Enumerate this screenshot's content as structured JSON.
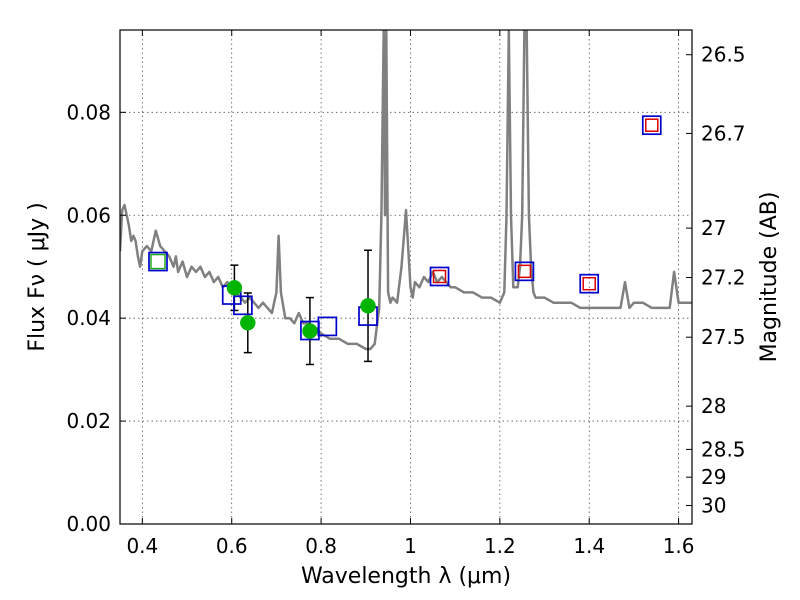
{
  "chart_data": {
    "type": "scatter",
    "xlabel": "Wavelength  λ (μm)",
    "ylabel": "Flux  Fν  ( μJy )",
    "ylabel_right": "Magnitude (AB)",
    "xlim": [
      0.35,
      1.63
    ],
    "ylim": [
      0.0,
      0.096
    ],
    "grid": true,
    "x_ticks": [
      0.4,
      0.6,
      0.8,
      1.0,
      1.2,
      1.4,
      1.6
    ],
    "x_tick_labels": [
      "0.4",
      "0.6",
      "0.8",
      "1",
      "1.2",
      "1.4",
      "1.6"
    ],
    "y_ticks": [
      0.0,
      0.02,
      0.04,
      0.06,
      0.08
    ],
    "y_tick_labels": [
      "0.00",
      "0.02",
      "0.04",
      "0.06",
      "0.08"
    ],
    "mag_ticks": [
      {
        "flux": 0.0912,
        "label": "26.5"
      },
      {
        "flux": 0.0759,
        "label": "26.7"
      },
      {
        "flux": 0.0575,
        "label": "27"
      },
      {
        "flux": 0.0479,
        "label": "27.2"
      },
      {
        "flux": 0.0363,
        "label": "27.5"
      },
      {
        "flux": 0.0229,
        "label": "28"
      },
      {
        "flux": 0.0145,
        "label": "28.5"
      },
      {
        "flux": 0.0091,
        "label": "29"
      },
      {
        "flux": 0.0036,
        "label": "30"
      }
    ],
    "colors": {
      "model": "#808080",
      "observed": "#00b400",
      "model_band": "#0000cc",
      "green_square": "#22aa22",
      "red_square": "#dd0000",
      "errorbar": "#000000",
      "grid": "#555555"
    },
    "model_spectrum": {
      "name": "model SED",
      "x": [
        0.35,
        0.355,
        0.36,
        0.365,
        0.37,
        0.375,
        0.38,
        0.385,
        0.39,
        0.395,
        0.4,
        0.41,
        0.42,
        0.425,
        0.43,
        0.44,
        0.45,
        0.46,
        0.47,
        0.475,
        0.48,
        0.49,
        0.5,
        0.51,
        0.52,
        0.53,
        0.54,
        0.55,
        0.56,
        0.57,
        0.58,
        0.59,
        0.6,
        0.61,
        0.62,
        0.63,
        0.64,
        0.65,
        0.66,
        0.67,
        0.68,
        0.69,
        0.7,
        0.705,
        0.71,
        0.72,
        0.73,
        0.74,
        0.75,
        0.76,
        0.77,
        0.78,
        0.79,
        0.8,
        0.82,
        0.84,
        0.86,
        0.88,
        0.9,
        0.91,
        0.92,
        0.93,
        0.935,
        0.94,
        0.943,
        0.946,
        0.95,
        0.955,
        0.96,
        0.97,
        0.98,
        0.99,
        1.0,
        1.005,
        1.01,
        1.02,
        1.03,
        1.04,
        1.05,
        1.06,
        1.07,
        1.08,
        1.09,
        1.1,
        1.12,
        1.14,
        1.16,
        1.18,
        1.2,
        1.21,
        1.215,
        1.22,
        1.225,
        1.23,
        1.24,
        1.245,
        1.25,
        1.255,
        1.26,
        1.265,
        1.27,
        1.275,
        1.28,
        1.29,
        1.3,
        1.32,
        1.34,
        1.36,
        1.38,
        1.4,
        1.42,
        1.44,
        1.46,
        1.47,
        1.48,
        1.49,
        1.5,
        1.52,
        1.54,
        1.56,
        1.58,
        1.59,
        1.6,
        1.61,
        1.63
      ],
      "y": [
        0.053,
        0.061,
        0.062,
        0.06,
        0.058,
        0.055,
        0.056,
        0.055,
        0.052,
        0.05,
        0.053,
        0.054,
        0.053,
        0.055,
        0.057,
        0.054,
        0.053,
        0.052,
        0.05,
        0.052,
        0.049,
        0.051,
        0.048,
        0.05,
        0.049,
        0.05,
        0.048,
        0.049,
        0.047,
        0.048,
        0.046,
        0.047,
        0.045,
        0.045,
        0.044,
        0.043,
        0.044,
        0.043,
        0.042,
        0.043,
        0.042,
        0.041,
        0.045,
        0.056,
        0.045,
        0.04,
        0.04,
        0.039,
        0.041,
        0.039,
        0.039,
        0.038,
        0.038,
        0.037,
        0.036,
        0.036,
        0.035,
        0.035,
        0.034,
        0.034,
        0.035,
        0.042,
        0.06,
        0.096,
        0.06,
        0.096,
        0.045,
        0.043,
        0.044,
        0.043,
        0.05,
        0.061,
        0.046,
        0.044,
        0.047,
        0.046,
        0.048,
        0.047,
        0.049,
        0.047,
        0.048,
        0.047,
        0.046,
        0.046,
        0.045,
        0.045,
        0.044,
        0.044,
        0.043,
        0.045,
        0.06,
        0.096,
        0.06,
        0.046,
        0.046,
        0.05,
        0.06,
        0.096,
        0.096,
        0.06,
        0.05,
        0.045,
        0.044,
        0.044,
        0.044,
        0.043,
        0.043,
        0.043,
        0.042,
        0.042,
        0.042,
        0.042,
        0.042,
        0.042,
        0.047,
        0.042,
        0.043,
        0.043,
        0.042,
        0.042,
        0.042,
        0.049,
        0.043,
        0.043,
        0.043
      ]
    },
    "observed_points": {
      "name": "observed photometry",
      "points": [
        {
          "x": 0.606,
          "y": 0.0459,
          "err": 0.0044
        },
        {
          "x": 0.636,
          "y": 0.0391,
          "err": 0.0058
        },
        {
          "x": 0.775,
          "y": 0.0375,
          "err": 0.0065
        },
        {
          "x": 0.905,
          "y": 0.0424,
          "err": 0.0108
        }
      ]
    },
    "model_bands": {
      "name": "model band fluxes",
      "points": [
        {
          "x": 0.435,
          "y": 0.051,
          "inner": "green"
        },
        {
          "x": 0.6,
          "y": 0.0445,
          "inner": "none"
        },
        {
          "x": 0.625,
          "y": 0.0425,
          "inner": "none"
        },
        {
          "x": 0.775,
          "y": 0.0376,
          "inner": "none"
        },
        {
          "x": 0.814,
          "y": 0.0384,
          "inner": "none"
        },
        {
          "x": 0.905,
          "y": 0.0404,
          "inner": "none"
        },
        {
          "x": 1.065,
          "y": 0.0481,
          "inner": "red"
        },
        {
          "x": 1.255,
          "y": 0.0491,
          "inner": "red"
        },
        {
          "x": 1.4,
          "y": 0.0467,
          "inner": "red"
        },
        {
          "x": 1.54,
          "y": 0.0775,
          "inner": "red"
        }
      ]
    }
  }
}
